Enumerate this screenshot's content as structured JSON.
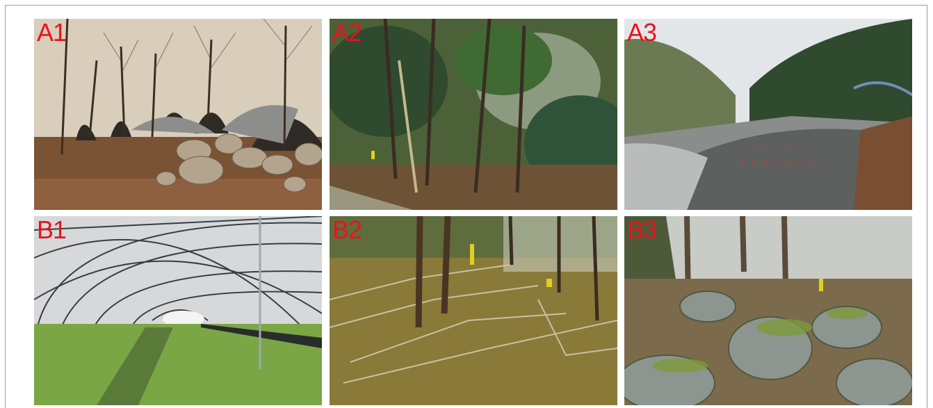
{
  "panels": [
    {
      "label": "A1"
    },
    {
      "label": "A2"
    },
    {
      "label": "A3"
    },
    {
      "label": "B1"
    },
    {
      "label": "B2"
    },
    {
      "label": "B3"
    }
  ]
}
